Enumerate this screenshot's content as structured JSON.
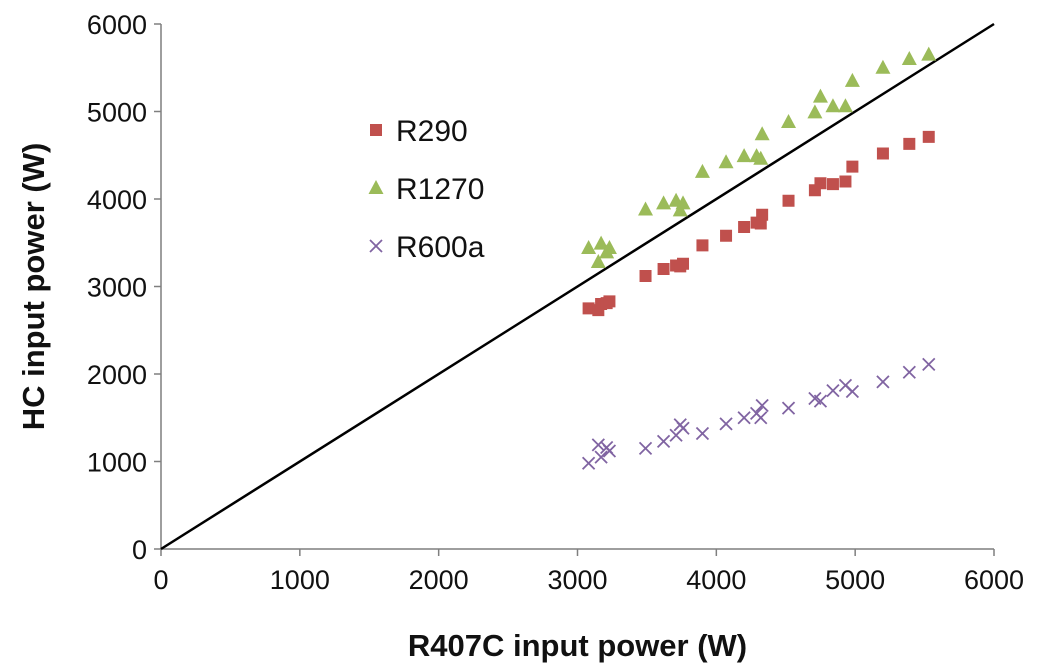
{
  "chart_data": {
    "type": "scatter",
    "title": "",
    "xlabel": "R407C input power (W)",
    "ylabel": "HC input power (W)",
    "xlim": [
      0,
      6000
    ],
    "ylim": [
      0,
      6000
    ],
    "xticks": [
      "0",
      "1000",
      "2000",
      "3000",
      "4000",
      "5000",
      "6000"
    ],
    "yticks": [
      "0",
      "1000",
      "2000",
      "3000",
      "4000",
      "5000",
      "6000"
    ],
    "grid": false,
    "legend_position": "upper-left-inside",
    "reference_line": {
      "x": [
        0,
        6000
      ],
      "y": [
        0,
        6000
      ],
      "color": "#000000"
    },
    "series": [
      {
        "name": "R290",
        "marker": "square",
        "color": "#c0504d",
        "x": [
          3080,
          3150,
          3170,
          3210,
          3230,
          3490,
          3620,
          3710,
          3740,
          3760,
          3900,
          4070,
          4200,
          4290,
          4320,
          4330,
          4520,
          4710,
          4750,
          4840,
          4930,
          4980,
          5200,
          5390,
          5530
        ],
        "y": [
          2750,
          2730,
          2800,
          2810,
          2830,
          3120,
          3200,
          3240,
          3230,
          3260,
          3470,
          3580,
          3680,
          3730,
          3720,
          3820,
          3980,
          4100,
          4180,
          4170,
          4200,
          4370,
          4520,
          4630,
          4710
        ]
      },
      {
        "name": "R1270",
        "marker": "triangle",
        "color": "#9bbb59",
        "x": [
          3080,
          3150,
          3170,
          3210,
          3230,
          3490,
          3620,
          3710,
          3740,
          3760,
          3900,
          4070,
          4200,
          4290,
          4320,
          4330,
          4520,
          4710,
          4750,
          4840,
          4930,
          4980,
          5200,
          5390,
          5530
        ],
        "y": [
          3440,
          3280,
          3490,
          3390,
          3440,
          3880,
          3950,
          3980,
          3870,
          3950,
          4310,
          4420,
          4490,
          4490,
          4460,
          4740,
          4880,
          4990,
          5170,
          5060,
          5060,
          5350,
          5500,
          5600,
          5650
        ]
      },
      {
        "name": "R600a",
        "marker": "x",
        "color": "#8064a2",
        "x": [
          3080,
          3150,
          3170,
          3210,
          3230,
          3490,
          3620,
          3710,
          3740,
          3760,
          3900,
          4070,
          4200,
          4290,
          4320,
          4330,
          4520,
          4710,
          4750,
          4840,
          4930,
          4980,
          5200,
          5390,
          5530
        ],
        "y": [
          980,
          1190,
          1050,
          1160,
          1120,
          1150,
          1230,
          1300,
          1420,
          1380,
          1320,
          1430,
          1500,
          1550,
          1500,
          1640,
          1610,
          1720,
          1690,
          1810,
          1870,
          1800,
          1910,
          2020,
          2110
        ]
      }
    ]
  }
}
